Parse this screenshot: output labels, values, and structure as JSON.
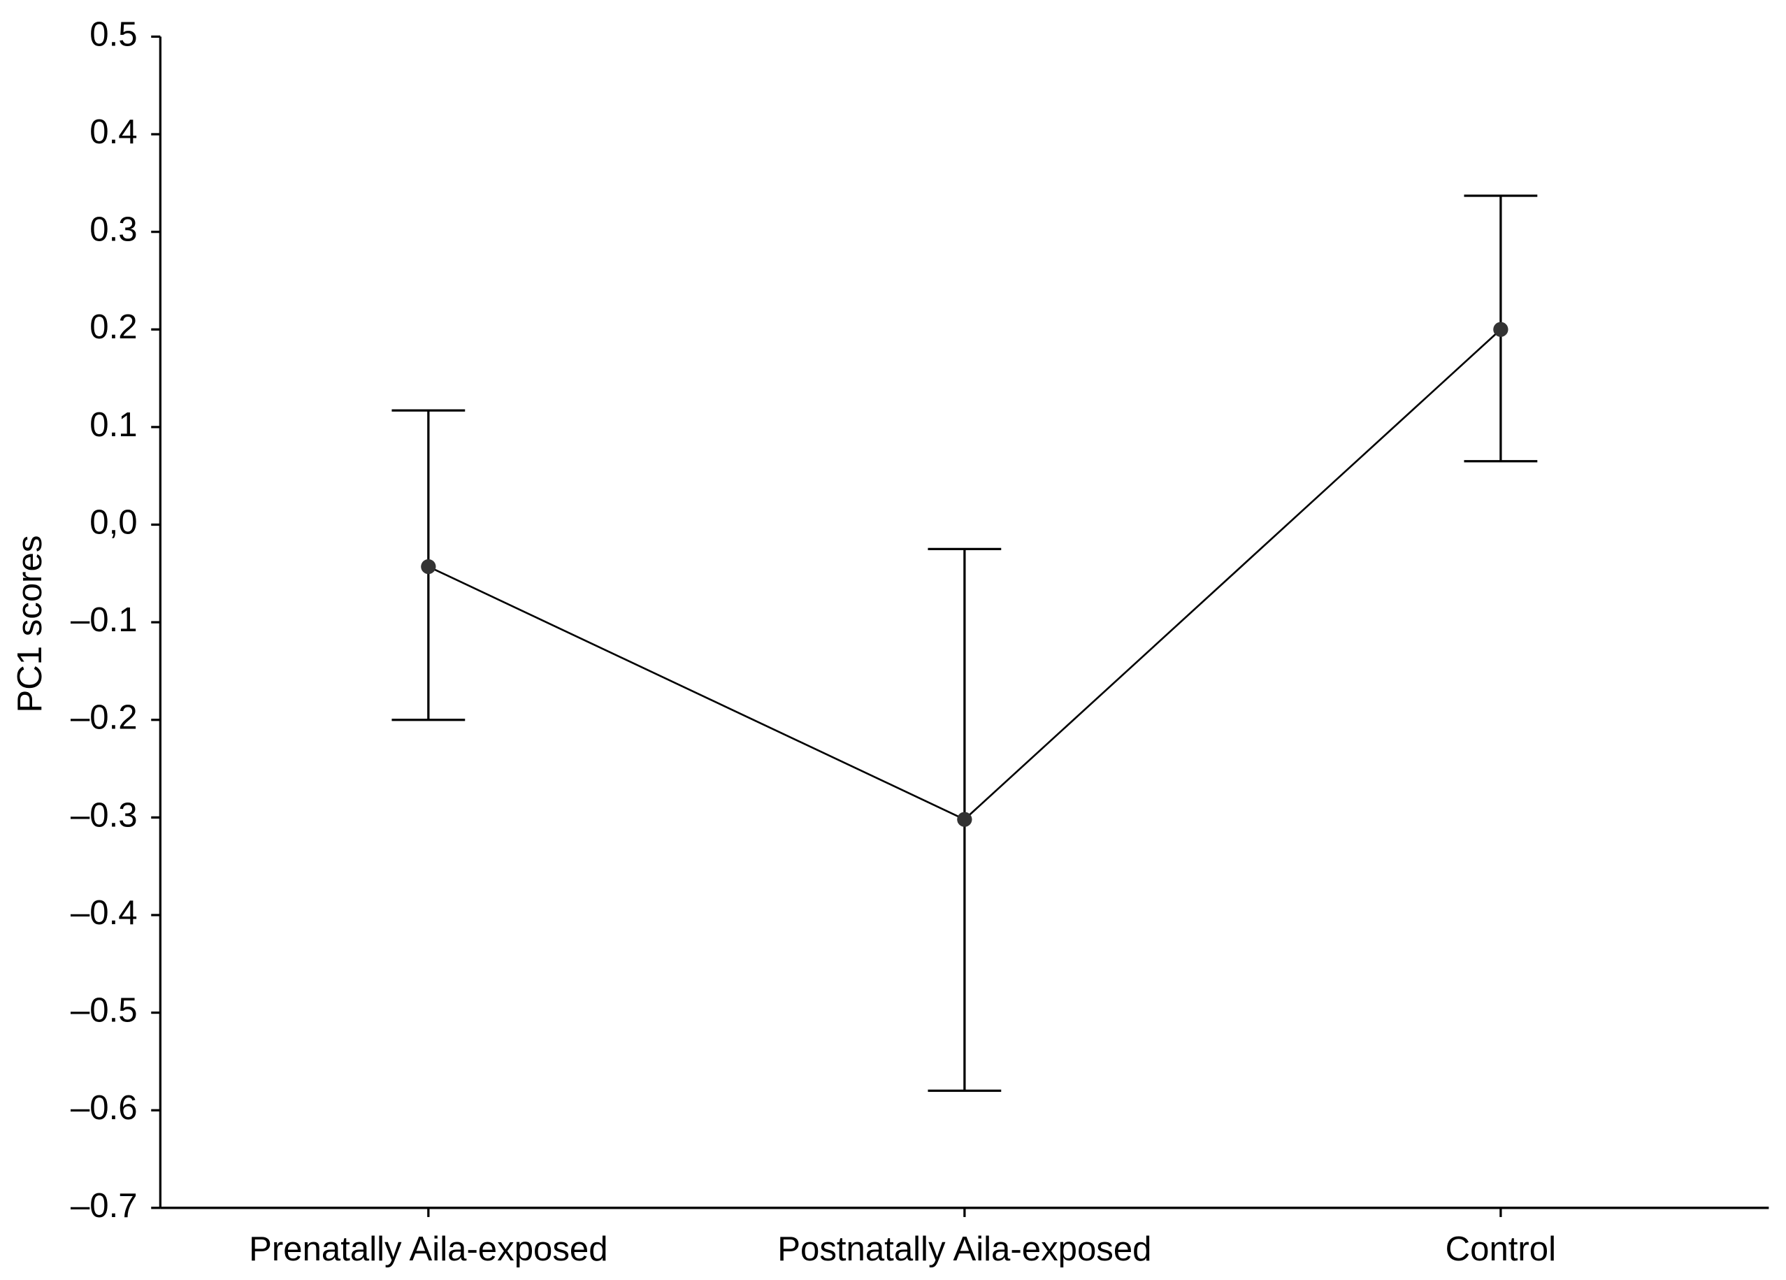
{
  "chart_data": {
    "type": "line",
    "y_label": "PC1 scores",
    "categories": [
      "Prenatally Aila-exposed",
      "Postnatally Aila-exposed",
      "Control"
    ],
    "series": [
      {
        "color": "#000000",
        "values": [
          -0.043,
          -0.302,
          0.2
        ],
        "upper": [
          0.117,
          -0.025,
          0.337
        ],
        "lower": [
          -0.2,
          -0.58,
          0.065
        ]
      }
    ],
    "ylim": [
      -0.7,
      0.5
    ],
    "yticks": [
      0.5,
      0.4,
      0.3,
      0.2,
      0.1,
      {
        "value": 0,
        "label": "0,0"
      },
      {
        "value": -0.1,
        "label": "–0.1"
      },
      {
        "value": -0.2,
        "label": "–0.2"
      },
      {
        "value": -0.3,
        "label": "–0.3"
      },
      {
        "value": -0.4,
        "label": "–0.4"
      },
      {
        "value": -0.5,
        "label": "–0.5"
      },
      {
        "value": -0.6,
        "label": "–0.6"
      },
      {
        "value": -0.7,
        "label": "–0.7"
      }
    ]
  }
}
